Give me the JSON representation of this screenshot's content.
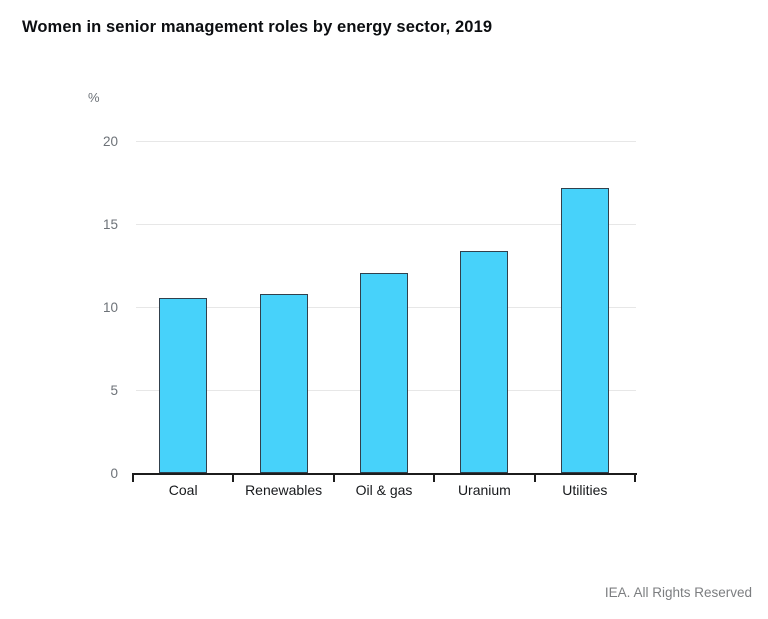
{
  "header": {
    "title": "Women in senior management roles by energy sector, 2019"
  },
  "chart_data": {
    "type": "bar",
    "title": "Women in senior management roles by energy sector, 2019",
    "unit_label": "%",
    "categories": [
      "Coal",
      "Renewables",
      "Oil & gas",
      "Uranium",
      "Utilities"
    ],
    "values": [
      10.6,
      10.8,
      12.1,
      13.4,
      17.2
    ],
    "xlabel": "",
    "ylabel": "%",
    "ylim": [
      0,
      20
    ],
    "yticks": [
      0,
      5,
      10,
      15,
      20
    ],
    "grid": "horizontal",
    "legend_position": "none",
    "bar_color": "#47d2fa",
    "bar_border_color": "#31404c",
    "gridline_color": "#e7e7e7",
    "axis_color": "#1c1c1c"
  },
  "footer": {
    "text": "IEA. All Rights Reserved"
  }
}
